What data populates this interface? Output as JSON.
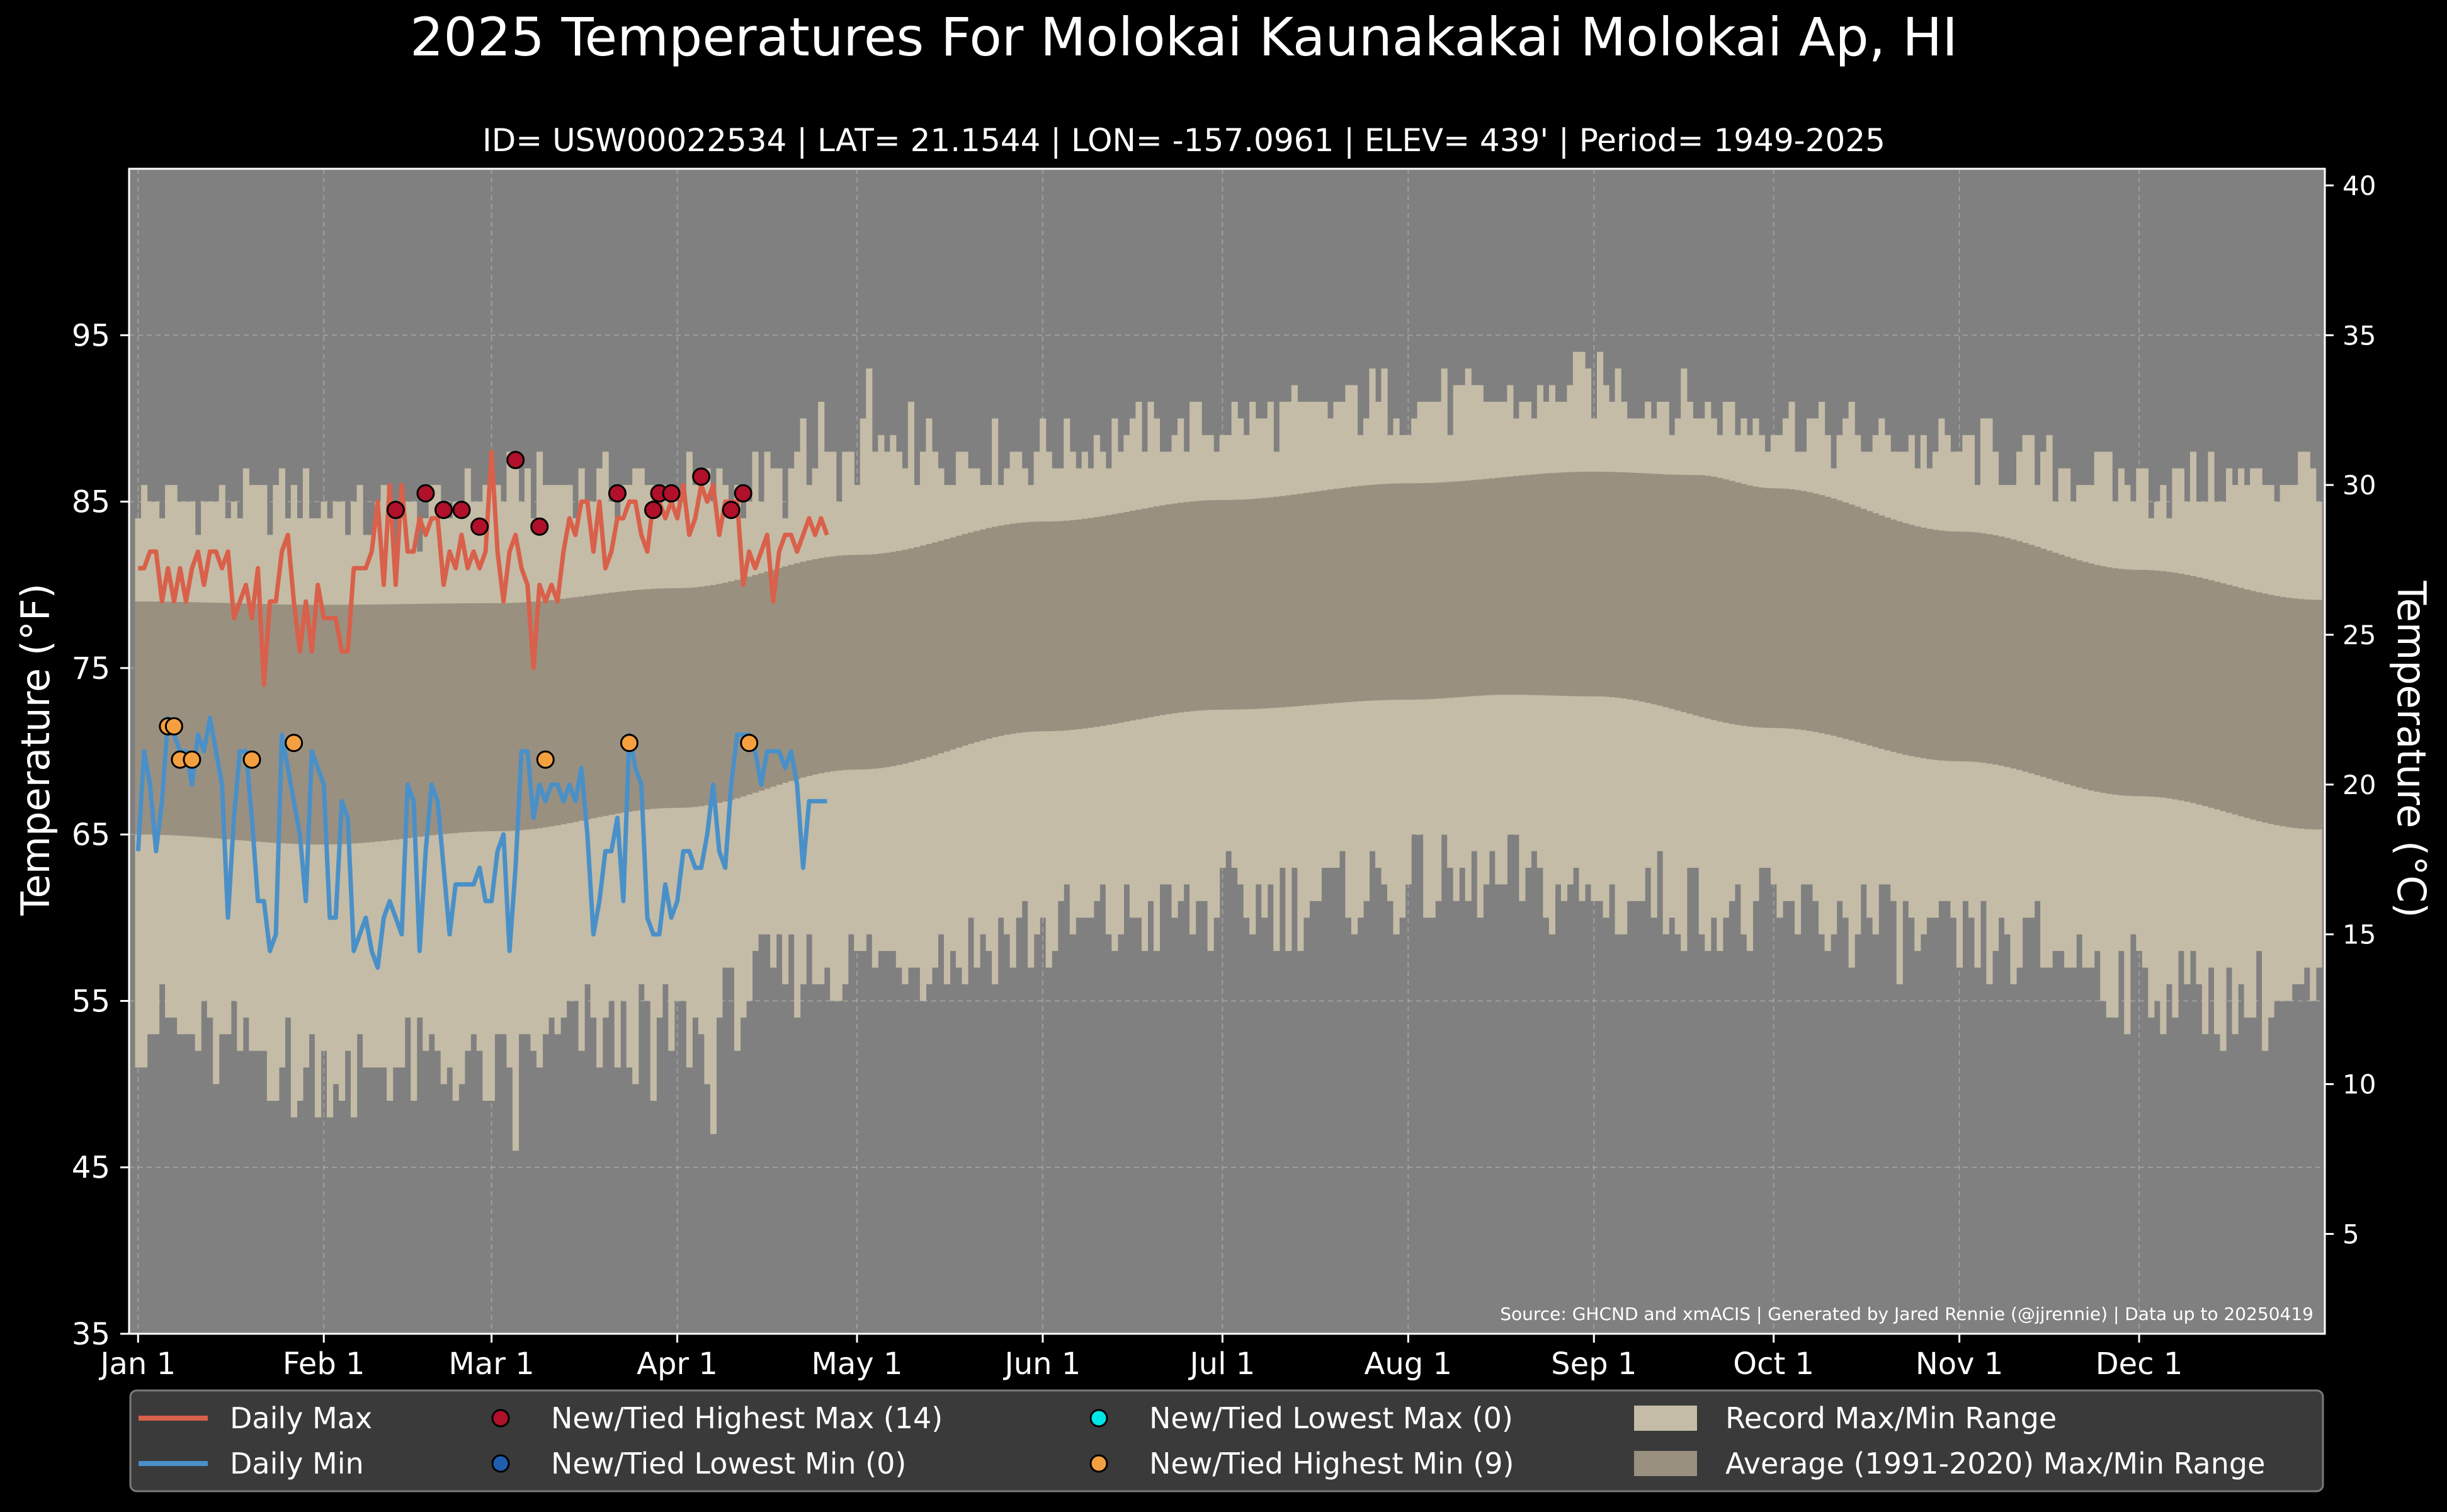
{
  "chart_data": {
    "type": "line",
    "title": "2025 Temperatures For Molokai Kaunakakai Molokai Ap, HI",
    "subtitle": "ID= USW00022534 | LAT= 21.1544 | LON= -157.0961 | ELEV= 439' | Period= 1949-2025",
    "ylabel_left": "Temperature ($^\\circ$F)",
    "ylabel_left_display": "Temperature (°F)",
    "ylabel_right": "Temperature (°C)",
    "source": "Source: GHCND and xmACIS | Generated by Jared Rennie (@jjrennie) | Data up to 20250419",
    "x_ticks": [
      "Jan 1",
      "Feb 1",
      "Mar 1",
      "Apr 1",
      "May 1",
      "Jun 1",
      "Jul 1",
      "Aug 1",
      "Sep 1",
      "Oct 1",
      "Nov 1",
      "Dec 1"
    ],
    "y_ticks_f": [
      "35",
      "45",
      "55",
      "65",
      "75",
      "85",
      "95"
    ],
    "y_ticks_c": [
      "5",
      "10",
      "15",
      "20",
      "25",
      "30",
      "35",
      "40"
    ],
    "ylim_f": [
      35,
      105
    ],
    "ylim_c": [
      1.67,
      40.56
    ],
    "x_range_days": [
      -1.5,
      365
    ],
    "grid": true,
    "legend_position": "bottom",
    "colors": {
      "background": "#000000",
      "plot_bg": "#808080",
      "record_band": "#c4bca6",
      "avg_band": "#9a9080",
      "daily_max": "#d9604a",
      "daily_min": "#4a90c8",
      "highest_max_marker": "#b0102a",
      "lowest_min_marker": "#1f5fb0",
      "lowest_max_marker": "#00e5e5",
      "highest_min_marker": "#f5a040",
      "legend_bg": "#3a3a3a"
    },
    "legend": [
      {
        "label": "Daily Max",
        "kind": "line",
        "color": "#d9604a"
      },
      {
        "label": "New/Tied Highest Max (14)",
        "kind": "dot",
        "color": "#b0102a"
      },
      {
        "label": "New/Tied Lowest Max (0)",
        "kind": "dot",
        "color": "#00e5e5"
      },
      {
        "label": "Record Max/Min Range",
        "kind": "patch",
        "color": "#c4bca6"
      },
      {
        "label": "Daily Min",
        "kind": "line",
        "color": "#4a90c8"
      },
      {
        "label": "New/Tied Lowest Min (0)",
        "kind": "dot",
        "color": "#1f5fb0"
      },
      {
        "label": "New/Tied Highest Min (9)",
        "kind": "dot",
        "color": "#f5a040"
      },
      {
        "label": "Average (1991-2020) Max/Min Range",
        "kind": "patch",
        "color": "#9a9080"
      }
    ],
    "record_high_anchors": [
      [
        0,
        85
      ],
      [
        14,
        85
      ],
      [
        31,
        85
      ],
      [
        45,
        84
      ],
      [
        60,
        86
      ],
      [
        75,
        86
      ],
      [
        90,
        86
      ],
      [
        110,
        86
      ],
      [
        130,
        88
      ],
      [
        150,
        88
      ],
      [
        170,
        89
      ],
      [
        190,
        90
      ],
      [
        210,
        91
      ],
      [
        230,
        91
      ],
      [
        243,
        92
      ],
      [
        255,
        91
      ],
      [
        270,
        90
      ],
      [
        285,
        89
      ],
      [
        305,
        88
      ],
      [
        320,
        87
      ],
      [
        335,
        86
      ],
      [
        350,
        86
      ],
      [
        364,
        87
      ]
    ],
    "record_low_anchors": [
      [
        0,
        54
      ],
      [
        14,
        52
      ],
      [
        31,
        51
      ],
      [
        45,
        51
      ],
      [
        60,
        51
      ],
      [
        75,
        53
      ],
      [
        90,
        53
      ],
      [
        110,
        57
      ],
      [
        130,
        58
      ],
      [
        150,
        59
      ],
      [
        170,
        60
      ],
      [
        190,
        61
      ],
      [
        210,
        62
      ],
      [
        230,
        62
      ],
      [
        243,
        61
      ],
      [
        255,
        61
      ],
      [
        270,
        60
      ],
      [
        285,
        60
      ],
      [
        305,
        58
      ],
      [
        320,
        58
      ],
      [
        335,
        56
      ],
      [
        350,
        55
      ],
      [
        364,
        55
      ]
    ],
    "avg_high_anchors": [
      [
        0,
        79
      ],
      [
        31,
        78.8
      ],
      [
        60,
        78.9
      ],
      [
        90,
        79.8
      ],
      [
        120,
        81.8
      ],
      [
        151,
        83.8
      ],
      [
        181,
        85.1
      ],
      [
        212,
        86.1
      ],
      [
        243,
        86.8
      ],
      [
        260,
        86.6
      ],
      [
        273,
        85.8
      ],
      [
        304,
        83.2
      ],
      [
        334,
        80.9
      ],
      [
        364,
        79.1
      ]
    ],
    "avg_low_anchors": [
      [
        0,
        65
      ],
      [
        31,
        64.4
      ],
      [
        60,
        65.2
      ],
      [
        90,
        66.6
      ],
      [
        120,
        68.9
      ],
      [
        151,
        71.2
      ],
      [
        181,
        72.5
      ],
      [
        212,
        73.1
      ],
      [
        229,
        73.4
      ],
      [
        243,
        73.3
      ],
      [
        273,
        71.4
      ],
      [
        304,
        69.4
      ],
      [
        334,
        67.3
      ],
      [
        364,
        65.3
      ]
    ],
    "series": [
      {
        "name": "Daily Max",
        "values": [
          81,
          81,
          82,
          82,
          79,
          81,
          79,
          81,
          79,
          81,
          82,
          80,
          82,
          82,
          81,
          82,
          78,
          79,
          80,
          78,
          81,
          74,
          79,
          79,
          82,
          83,
          79,
          76,
          79,
          76,
          80,
          78,
          78,
          78,
          76,
          76,
          81,
          81,
          81,
          82,
          85,
          80,
          86,
          80,
          86,
          82,
          82,
          84,
          83,
          84,
          84,
          80,
          82,
          81,
          83,
          81,
          82,
          81,
          82,
          88,
          82,
          79,
          82,
          83,
          81,
          80,
          75,
          80,
          79,
          80,
          79,
          82,
          84,
          83,
          85,
          85,
          82,
          85,
          81,
          82,
          84,
          84,
          85,
          85,
          83,
          82,
          85,
          85,
          84,
          85,
          84,
          86,
          83,
          84,
          86,
          85,
          86,
          83,
          85,
          85,
          85,
          80,
          82,
          81,
          82,
          83,
          79,
          82,
          83,
          83,
          82,
          83,
          84,
          83,
          84,
          83
        ]
      },
      {
        "name": "Daily Min",
        "values": [
          64,
          70,
          68,
          64,
          67,
          72,
          71,
          70,
          70,
          68,
          71,
          70,
          72,
          70,
          68,
          60,
          66,
          70,
          70,
          66,
          61,
          61,
          58,
          59,
          71,
          69,
          67,
          65,
          61,
          70,
          69,
          68,
          60,
          60,
          67,
          66,
          58,
          59,
          60,
          58,
          57,
          60,
          61,
          60,
          59,
          68,
          67,
          58,
          64,
          68,
          67,
          63,
          59,
          62,
          62,
          62,
          62,
          63,
          61,
          61,
          64,
          65,
          58,
          63,
          70,
          70,
          66,
          68,
          67,
          68,
          68,
          67,
          68,
          67,
          69,
          65,
          59,
          61,
          64,
          64,
          66,
          61,
          71,
          69,
          68,
          60,
          59,
          59,
          62,
          60,
          61,
          64,
          64,
          63,
          63,
          65,
          68,
          64,
          63,
          68,
          71,
          71,
          71,
          70,
          68,
          70,
          70,
          70,
          69,
          70,
          68,
          63,
          67,
          67,
          67,
          67
        ]
      }
    ],
    "highest_max_points": [
      [
        43,
        84.5
      ],
      [
        48,
        85.5
      ],
      [
        51,
        84.5
      ],
      [
        54,
        84.5
      ],
      [
        57,
        83.5
      ],
      [
        63,
        87.5
      ],
      [
        67,
        83.5
      ],
      [
        80,
        85.5
      ],
      [
        86,
        84.5
      ],
      [
        87,
        85.5
      ],
      [
        89,
        85.5
      ],
      [
        94,
        86.5
      ],
      [
        99,
        84.5
      ],
      [
        101,
        85.5
      ]
    ],
    "highest_min_points": [
      [
        5,
        71.5
      ],
      [
        6,
        71.5
      ],
      [
        7,
        69.5
      ],
      [
        9,
        69.5
      ],
      [
        19,
        69.5
      ],
      [
        26,
        70.5
      ],
      [
        68,
        69.5
      ],
      [
        82,
        70.5
      ],
      [
        102,
        70.5
      ]
    ]
  }
}
